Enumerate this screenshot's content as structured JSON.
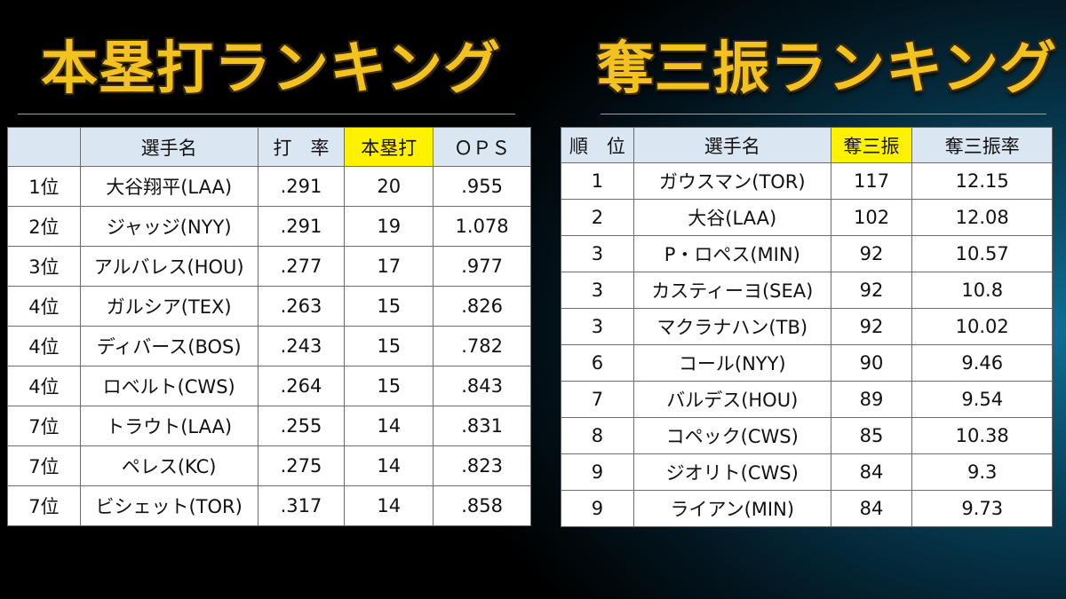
{
  "left": {
    "title": "本塁打ランキング",
    "headers": [
      "",
      "選手名",
      "打　率",
      "本塁打",
      "ＯＰＳ"
    ],
    "rows": [
      [
        "1位",
        "大谷翔平(LAA)",
        ".291",
        "20",
        ".955"
      ],
      [
        "2位",
        "ジャッジ(NYY)",
        ".291",
        "19",
        "1.078"
      ],
      [
        "3位",
        "アルバレス(HOU)",
        ".277",
        "17",
        ".977"
      ],
      [
        "4位",
        "ガルシア(TEX)",
        ".263",
        "15",
        ".826"
      ],
      [
        "4位",
        "ディバース(BOS)",
        ".243",
        "15",
        ".782"
      ],
      [
        "4位",
        "ロベルト(CWS)",
        ".264",
        "15",
        ".843"
      ],
      [
        "7位",
        "トラウト(LAA)",
        ".255",
        "14",
        ".831"
      ],
      [
        "7位",
        "ペレス(KC)",
        ".275",
        "14",
        ".823"
      ],
      [
        "7位",
        "ビシェット(TOR)",
        ".317",
        "14",
        ".858"
      ]
    ]
  },
  "right": {
    "title": "奪三振ランキング",
    "headers": [
      "順　位",
      "選手名",
      "奪三振",
      "奪三振率"
    ],
    "rows": [
      [
        "1",
        "ガウスマン(TOR)",
        "117",
        "12.15"
      ],
      [
        "2",
        "大谷(LAA)",
        "102",
        "12.08"
      ],
      [
        "3",
        "P・ロペス(MIN)",
        "92",
        "10.57"
      ],
      [
        "3",
        "カスティーヨ(SEA)",
        "92",
        "10.8"
      ],
      [
        "3",
        "マクラナハン(TB)",
        "92",
        "10.02"
      ],
      [
        "6",
        "コール(NYY)",
        "90",
        "9.46"
      ],
      [
        "7",
        "バルデス(HOU)",
        "89",
        "9.54"
      ],
      [
        "8",
        "コペック(CWS)",
        "85",
        "10.38"
      ],
      [
        "9",
        "ジオリト(CWS)",
        "84",
        "9.3"
      ],
      [
        "9",
        "ライアン(MIN)",
        "84",
        "9.73"
      ]
    ]
  },
  "colors": {
    "title": "#f4c21e",
    "header_bg": "#dbe6f3",
    "highlight_header": "#fff200"
  }
}
